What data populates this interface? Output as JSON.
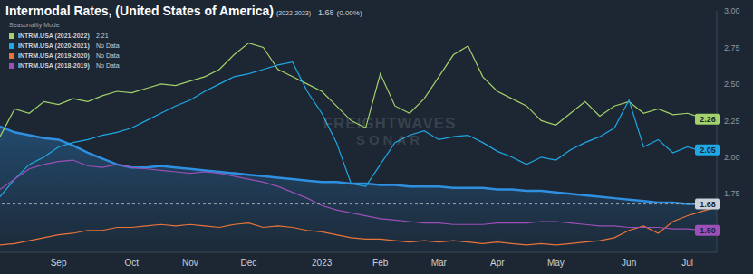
{
  "chart_data": {
    "type": "line",
    "title": "Intermodal Rates, (United States of America)",
    "subtitle": "(2022-2023)",
    "title_value": "1.68",
    "title_change": "(0.00%)",
    "legend_title": "Seasonality Mode",
    "watermark": [
      "FREIGHTWAVES",
      "SONAR"
    ],
    "categories": [
      null,
      null,
      null,
      null,
      "Sep",
      null,
      null,
      null,
      null,
      "Oct",
      null,
      null,
      null,
      "Nov",
      null,
      null,
      null,
      "Dec",
      null,
      null,
      null,
      null,
      "2023",
      null,
      null,
      null,
      "Feb",
      null,
      null,
      null,
      "Mar",
      null,
      null,
      null,
      "Apr",
      null,
      null,
      null,
      "May",
      null,
      null,
      null,
      null,
      "Jun",
      null,
      null,
      null,
      "Jul",
      null,
      null
    ],
    "series": [
      {
        "name": "(2022-2023)",
        "type": "area",
        "color": "#2f8fe0",
        "values": [
          2.21,
          2.17,
          2.15,
          2.13,
          2.12,
          2.08,
          2.03,
          1.99,
          1.95,
          1.93,
          1.93,
          1.94,
          1.93,
          1.92,
          1.91,
          1.9,
          1.89,
          1.88,
          1.87,
          1.86,
          1.85,
          1.84,
          1.83,
          1.83,
          1.82,
          1.82,
          1.81,
          1.81,
          1.8,
          1.8,
          1.8,
          1.79,
          1.79,
          1.79,
          1.78,
          1.78,
          1.77,
          1.77,
          1.76,
          1.75,
          1.74,
          1.73,
          1.72,
          1.71,
          1.7,
          1.69,
          1.69,
          1.68,
          1.68,
          1.68
        ]
      },
      {
        "name": "INTRM.USA (2021-2022)",
        "legend_label": "2.21",
        "type": "line",
        "color": "#a3d16a",
        "values": [
          2.14,
          2.33,
          2.3,
          2.38,
          2.36,
          2.4,
          2.38,
          2.42,
          2.45,
          2.44,
          2.47,
          2.5,
          2.49,
          2.52,
          2.55,
          2.6,
          2.7,
          2.78,
          2.75,
          2.6,
          2.55,
          2.5,
          2.45,
          2.35,
          2.25,
          2.2,
          2.57,
          2.35,
          2.3,
          2.4,
          2.55,
          2.7,
          2.76,
          2.55,
          2.45,
          2.4,
          2.35,
          2.25,
          2.22,
          2.3,
          2.38,
          2.28,
          2.35,
          2.38,
          2.3,
          2.33,
          2.29,
          2.3,
          2.27,
          2.26
        ]
      },
      {
        "name": "INTRM.USA (2020-2021)",
        "legend_label": "No Data",
        "type": "line",
        "color": "#1fa8e6",
        "values": [
          1.73,
          1.85,
          1.95,
          2.0,
          2.07,
          2.1,
          2.12,
          2.15,
          2.17,
          2.2,
          2.25,
          2.3,
          2.35,
          2.39,
          2.45,
          2.5,
          2.55,
          2.57,
          2.6,
          2.63,
          2.65,
          2.45,
          2.3,
          2.1,
          1.82,
          1.8,
          1.95,
          2.1,
          2.15,
          2.18,
          2.12,
          2.14,
          2.15,
          2.1,
          2.04,
          2.0,
          1.95,
          2.0,
          1.98,
          2.05,
          2.1,
          2.14,
          2.2,
          2.39,
          2.07,
          2.12,
          2.03,
          2.07,
          2.04,
          2.05
        ]
      },
      {
        "name": "INTRM.USA (2019-2020)",
        "legend_label": "No Data",
        "type": "line",
        "color": "#e8743b",
        "values": [
          1.4,
          1.41,
          1.43,
          1.45,
          1.47,
          1.48,
          1.5,
          1.5,
          1.52,
          1.52,
          1.53,
          1.54,
          1.53,
          1.54,
          1.53,
          1.52,
          1.54,
          1.55,
          1.52,
          1.53,
          1.52,
          1.5,
          1.49,
          1.47,
          1.45,
          1.44,
          1.44,
          1.43,
          1.42,
          1.43,
          1.42,
          1.43,
          1.42,
          1.41,
          1.42,
          1.41,
          1.4,
          1.41,
          1.4,
          1.41,
          1.42,
          1.43,
          1.45,
          1.5,
          1.53,
          1.48,
          1.56,
          1.6,
          1.63,
          1.66
        ]
      },
      {
        "name": "INTRM.USA (2018-2019)",
        "legend_label": "No Data",
        "type": "line",
        "color": "#9b4fb7",
        "values": [
          1.78,
          1.85,
          1.92,
          1.95,
          1.97,
          1.98,
          1.94,
          1.93,
          1.95,
          1.93,
          1.92,
          1.91,
          1.9,
          1.89,
          1.9,
          1.89,
          1.87,
          1.85,
          1.83,
          1.8,
          1.76,
          1.72,
          1.67,
          1.64,
          1.62,
          1.6,
          1.58,
          1.57,
          1.56,
          1.55,
          1.55,
          1.54,
          1.54,
          1.54,
          1.55,
          1.55,
          1.55,
          1.56,
          1.56,
          1.55,
          1.54,
          1.53,
          1.53,
          1.52,
          1.52,
          1.52,
          1.51,
          1.51,
          1.5,
          1.5
        ]
      }
    ],
    "annotations": [
      {
        "text": "2.26",
        "value": 2.26,
        "color": "#a3d16a"
      },
      {
        "text": "2.05",
        "value": 2.05,
        "color": "#1fa8e6"
      },
      {
        "text": "1.68",
        "value": 1.68,
        "color": "#c9d2da",
        "line_style": "dashed"
      },
      {
        "text": "1.50",
        "value": 1.5,
        "color": "#9b4fb7"
      }
    ],
    "ylim": [
      1.35,
      3.0
    ],
    "yticks": [
      {
        "value": 1.75,
        "label": "1.75"
      },
      {
        "value": 2,
        "label": "2.00"
      },
      {
        "value": 2.25,
        "label": "2.25"
      },
      {
        "value": 2.5,
        "label": "2.50"
      },
      {
        "value": 2.75,
        "label": "2.75"
      },
      {
        "value": 3,
        "label": "3.00"
      }
    ],
    "grid": false
  }
}
